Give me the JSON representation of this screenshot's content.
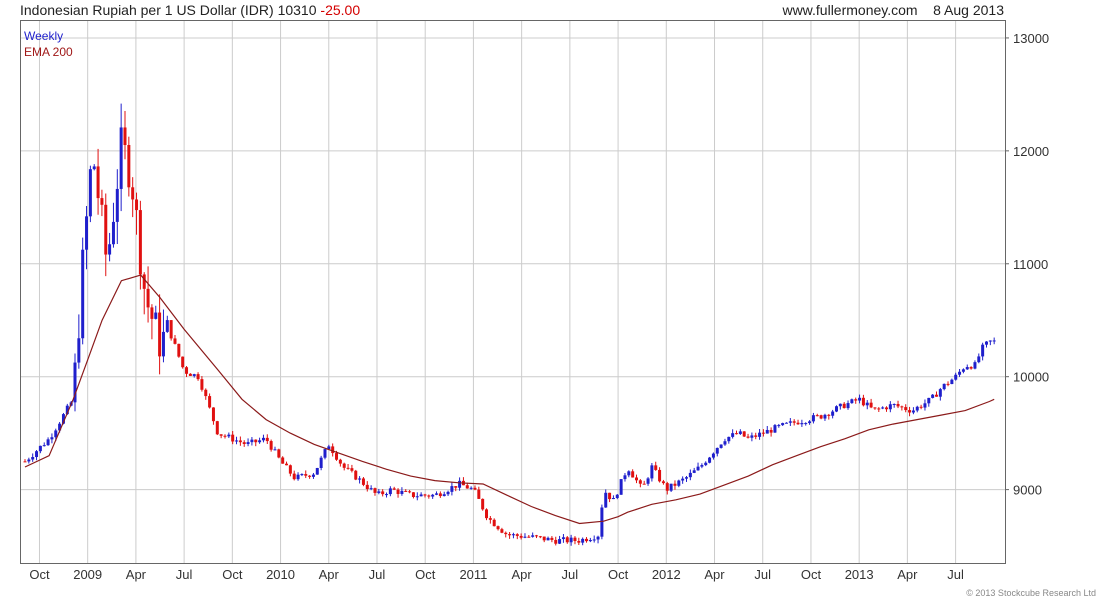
{
  "header": {
    "title": "Indonesian Rupiah per 1 US Dollar (IDR)",
    "last": "10310",
    "change": "-25.00",
    "source": "www.fullermoney.com",
    "date": "8 Aug 2013"
  },
  "legend": {
    "period": "Weekly",
    "ema": "EMA 200"
  },
  "copyright": "© 2013 Stockcube Research Ltd",
  "colors": {
    "up": "#1f1fcc",
    "down": "#e01010",
    "ema": "#8b1a1a",
    "grid": "#cccccc"
  },
  "chart_data": {
    "type": "candlestick",
    "title": "Indonesian Rupiah per 1 US Dollar (IDR)",
    "ylim": [
      8350,
      13150
    ],
    "yticks": [
      9000,
      10000,
      11000,
      12000,
      13000
    ],
    "xtick_labels": [
      "Oct",
      "2009",
      "Apr",
      "Jul",
      "Oct",
      "2010",
      "Apr",
      "Jul",
      "Oct",
      "2011",
      "Apr",
      "Jul",
      "Oct",
      "2012",
      "Apr",
      "Jul",
      "Oct",
      "2013",
      "Apr",
      "Jul"
    ],
    "xtick_times": [
      0.3,
      1.3,
      2.3,
      3.3,
      4.3,
      5.3,
      6.3,
      7.3,
      8.3,
      9.3,
      10.3,
      11.3,
      12.3,
      13.3,
      14.3,
      15.3,
      16.3,
      17.3,
      18.3,
      19.3
    ],
    "t_range": [
      0,
      20.2
    ],
    "grid": true,
    "price_series": {
      "name": "Weekly",
      "t": [
        0,
        0.5,
        1.0,
        1.2,
        1.4,
        1.7,
        2.0,
        2.2,
        2.5,
        2.8,
        3.0,
        3.3,
        3.6,
        4.0,
        4.3,
        4.6,
        5.0,
        5.3,
        5.6,
        6.0,
        6.3,
        6.6,
        6.9,
        7.3,
        7.6,
        8.0,
        8.5,
        9.0,
        9.3,
        9.6,
        10.0,
        10.5,
        11.0,
        11.5,
        11.9,
        12.0,
        12.2,
        12.5,
        12.8,
        13.0,
        13.3,
        13.7,
        14.0,
        14.5,
        14.8,
        15.0,
        15.3,
        15.6,
        16.0,
        16.5,
        17.0,
        17.3,
        17.6,
        18.0,
        18.4,
        18.8,
        19.0,
        19.3,
        19.5,
        19.7,
        19.85,
        20.0,
        20.1
      ],
      "close": [
        9250,
        9450,
        9800,
        11000,
        12000,
        11000,
        12050,
        11800,
        10700,
        10300,
        10400,
        10050,
        10000,
        9500,
        9450,
        9400,
        9450,
        9250,
        9100,
        9150,
        9400,
        9200,
        9100,
        8950,
        9000,
        8950,
        8950,
        9050,
        9000,
        8750,
        8600,
        8580,
        8550,
        8550,
        8600,
        9000,
        8900,
        9200,
        9000,
        9200,
        9000,
        9100,
        9200,
        9450,
        9500,
        9450,
        9500,
        9550,
        9600,
        9650,
        9750,
        9800,
        9700,
        9750,
        9700,
        9800,
        9900,
        10000,
        10100,
        10100,
        10250,
        10310,
        10310
      ]
    },
    "ema_series": {
      "name": "EMA 200",
      "t": [
        0,
        0.5,
        1.0,
        1.3,
        1.6,
        2.0,
        2.4,
        2.8,
        3.3,
        4.0,
        4.5,
        5.0,
        5.5,
        6.0,
        7.0,
        7.5,
        8.0,
        8.5,
        9.0,
        9.5,
        10.0,
        10.5,
        11.0,
        11.5,
        12.0,
        12.3,
        12.5,
        13.0,
        13.5,
        14.0,
        14.5,
        15.0,
        15.5,
        16.0,
        16.5,
        17.0,
        17.5,
        18.0,
        18.5,
        19.0,
        19.5,
        20.0,
        20.1
      ],
      "value": [
        9200,
        9300,
        9800,
        10150,
        10500,
        10850,
        10900,
        10700,
        10420,
        10060,
        9800,
        9620,
        9500,
        9400,
        9250,
        9180,
        9120,
        9080,
        9060,
        9050,
        8950,
        8850,
        8770,
        8700,
        8720,
        8760,
        8800,
        8870,
        8910,
        8960,
        9040,
        9120,
        9220,
        9300,
        9380,
        9450,
        9530,
        9580,
        9620,
        9660,
        9700,
        9780,
        9800
      ]
    }
  }
}
